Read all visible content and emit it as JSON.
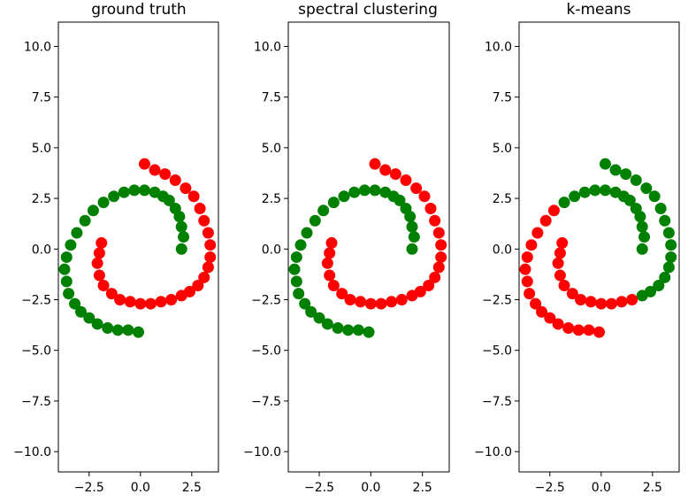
{
  "chart_data": [
    {
      "type": "scatter",
      "title": "ground truth",
      "xlabel": "",
      "ylabel": "",
      "xlim": [
        -4.0,
        3.8
      ],
      "ylim": [
        -11.0,
        11.2
      ],
      "xticks": [
        -2.5,
        0.0,
        2.5
      ],
      "xtick_labels": [
        "−2.5",
        "0.0",
        "2.5"
      ],
      "yticks": [
        -10,
        -7.5,
        -5,
        -2.5,
        0,
        2.5,
        5,
        7.5,
        10
      ],
      "ytick_labels": [
        "−10.0",
        "−7.5",
        "−5.0",
        "−2.5",
        "0.0",
        "2.5",
        "5.0",
        "7.5",
        "10.0"
      ],
      "grid": false,
      "series": [
        {
          "color": "#ff0000",
          "x": [
            0.2,
            0.7,
            1.2,
            1.7,
            2.2,
            2.6,
            2.9,
            3.1,
            3.3,
            3.4,
            3.4,
            3.3,
            3.1,
            2.8,
            2.4,
            2.0,
            1.5,
            1.0,
            0.5,
            0.0,
            -0.5,
            -1.0,
            -1.4,
            -1.8,
            -2.0,
            -2.1,
            -2.0,
            -1.9
          ],
          "y": [
            4.2,
            3.9,
            3.7,
            3.4,
            3.0,
            2.6,
            2.0,
            1.4,
            0.8,
            0.2,
            -0.4,
            -0.9,
            -1.4,
            -1.8,
            -2.1,
            -2.3,
            -2.5,
            -2.6,
            -2.7,
            -2.7,
            -2.6,
            -2.5,
            -2.2,
            -1.8,
            -1.3,
            -0.7,
            -0.2,
            0.3
          ]
        },
        {
          "color": "#008000",
          "x": [
            2.0,
            2.1,
            2.0,
            1.9,
            1.7,
            1.4,
            1.1,
            0.7,
            0.2,
            -0.3,
            -0.8,
            -1.3,
            -1.8,
            -2.3,
            -2.7,
            -3.1,
            -3.4,
            -3.6,
            -3.7,
            -3.6,
            -3.5,
            -3.2,
            -2.9,
            -2.5,
            -2.1,
            -1.6,
            -1.1,
            -0.6,
            -0.1
          ],
          "y": [
            0.0,
            0.6,
            1.1,
            1.6,
            2.0,
            2.4,
            2.6,
            2.8,
            2.9,
            2.9,
            2.8,
            2.6,
            2.3,
            1.9,
            1.4,
            0.8,
            0.2,
            -0.4,
            -1.0,
            -1.6,
            -2.2,
            -2.7,
            -3.1,
            -3.4,
            -3.7,
            -3.9,
            -4.0,
            -4.0,
            -4.1
          ]
        }
      ]
    },
    {
      "type": "scatter",
      "title": "spectral clustering",
      "xlabel": "",
      "ylabel": "",
      "xlim": [
        -4.0,
        3.8
      ],
      "ylim": [
        -11.0,
        11.2
      ],
      "xticks": [
        -2.5,
        0.0,
        2.5
      ],
      "xtick_labels": [
        "−2.5",
        "0.0",
        "2.5"
      ],
      "yticks": [
        -10,
        -7.5,
        -5,
        -2.5,
        0,
        2.5,
        5,
        7.5,
        10
      ],
      "ytick_labels": [
        "−10.0",
        "−7.5",
        "−5.0",
        "−2.5",
        "0.0",
        "2.5",
        "5.0",
        "7.5",
        "10.0"
      ],
      "grid": false,
      "series": [
        {
          "color": "#ff0000",
          "x": [
            0.2,
            0.7,
            1.2,
            1.7,
            2.2,
            2.6,
            2.9,
            3.1,
            3.3,
            3.4,
            3.4,
            3.3,
            3.1,
            2.8,
            2.4,
            2.0,
            1.5,
            1.0,
            0.5,
            0.0,
            -0.5,
            -1.0,
            -1.4,
            -1.8,
            -2.0,
            -2.1,
            -2.0,
            -1.9
          ],
          "y": [
            4.2,
            3.9,
            3.7,
            3.4,
            3.0,
            2.6,
            2.0,
            1.4,
            0.8,
            0.2,
            -0.4,
            -0.9,
            -1.4,
            -1.8,
            -2.1,
            -2.3,
            -2.5,
            -2.6,
            -2.7,
            -2.7,
            -2.6,
            -2.5,
            -2.2,
            -1.8,
            -1.3,
            -0.7,
            -0.2,
            0.3
          ]
        },
        {
          "color": "#008000",
          "x": [
            2.0,
            2.1,
            2.0,
            1.9,
            1.7,
            1.4,
            1.1,
            0.7,
            0.2,
            -0.3,
            -0.8,
            -1.3,
            -1.8,
            -2.3,
            -2.7,
            -3.1,
            -3.4,
            -3.6,
            -3.7,
            -3.6,
            -3.5,
            -3.2,
            -2.9,
            -2.5,
            -2.1,
            -1.6,
            -1.1,
            -0.6,
            -0.1
          ],
          "y": [
            0.0,
            0.6,
            1.1,
            1.6,
            2.0,
            2.4,
            2.6,
            2.8,
            2.9,
            2.9,
            2.8,
            2.6,
            2.3,
            1.9,
            1.4,
            0.8,
            0.2,
            -0.4,
            -1.0,
            -1.6,
            -2.2,
            -2.7,
            -3.1,
            -3.4,
            -3.7,
            -3.9,
            -4.0,
            -4.0,
            -4.1
          ]
        }
      ]
    },
    {
      "type": "scatter",
      "title": "k-means",
      "xlabel": "",
      "ylabel": "",
      "xlim": [
        -4.0,
        3.8
      ],
      "ylim": [
        -11.0,
        11.2
      ],
      "xticks": [
        -2.5,
        0.0,
        2.5
      ],
      "xtick_labels": [
        "−2.5",
        "0.0",
        "2.5"
      ],
      "yticks": [
        -10,
        -7.5,
        -5,
        -2.5,
        0,
        2.5,
        5,
        7.5,
        10
      ],
      "ytick_labels": [
        "−10.0",
        "−7.5",
        "−5.0",
        "−2.5",
        "0.0",
        "2.5",
        "5.0",
        "7.5",
        "10.0"
      ],
      "grid": false,
      "series": [
        {
          "color": "#008000",
          "x": [
            0.2,
            0.7,
            1.2,
            1.7,
            2.2,
            2.6,
            2.9,
            3.1,
            3.3,
            3.4,
            3.4,
            3.3,
            3.1,
            2.8,
            2.4,
            2.0,
            2.0,
            2.1,
            2.0,
            1.9,
            1.7,
            1.4,
            1.1,
            0.7,
            0.2,
            -0.3,
            -0.8,
            -1.3,
            -1.8
          ],
          "y": [
            4.2,
            3.9,
            3.7,
            3.4,
            3.0,
            2.6,
            2.0,
            1.4,
            0.8,
            0.2,
            -0.4,
            -0.9,
            -1.4,
            -1.8,
            -2.1,
            -2.3,
            0.0,
            0.6,
            1.1,
            1.6,
            2.0,
            2.4,
            2.6,
            2.8,
            2.9,
            2.9,
            2.8,
            2.6,
            2.3
          ]
        },
        {
          "color": "#ff0000",
          "x": [
            1.5,
            1.0,
            0.5,
            0.0,
            -0.5,
            -1.0,
            -1.4,
            -1.8,
            -2.0,
            -2.1,
            -2.0,
            -1.9,
            -2.3,
            -2.7,
            -3.1,
            -3.4,
            -3.6,
            -3.7,
            -3.6,
            -3.5,
            -3.2,
            -2.9,
            -2.5,
            -2.1,
            -1.6,
            -1.1,
            -0.6,
            -0.1
          ],
          "y": [
            -2.5,
            -2.6,
            -2.7,
            -2.7,
            -2.6,
            -2.5,
            -2.2,
            -1.8,
            -1.3,
            -0.7,
            -0.2,
            0.3,
            1.9,
            1.4,
            0.8,
            0.2,
            -0.4,
            -1.0,
            -1.6,
            -2.2,
            -2.7,
            -3.1,
            -3.4,
            -3.7,
            -3.9,
            -4.0,
            -4.0,
            -4.1
          ]
        }
      ]
    }
  ]
}
